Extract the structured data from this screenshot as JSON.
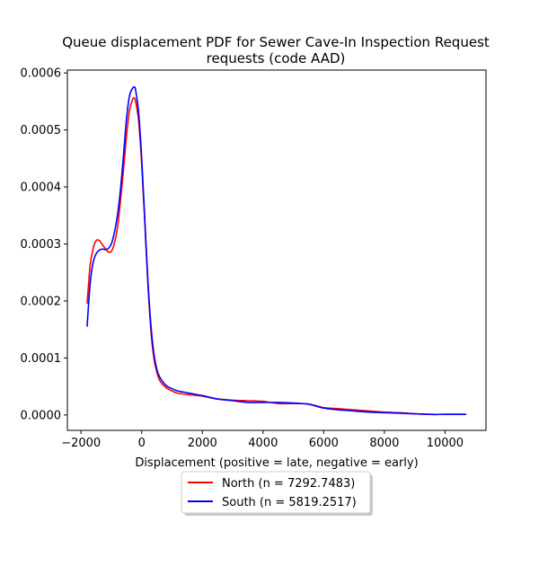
{
  "chart_data": {
    "type": "line",
    "title": "Queue displacement PDF for Sewer Cave-In Inspection Request requests (code AAD)",
    "title_lines": [
      "Queue displacement PDF for Sewer Cave-In Inspection Request",
      "requests (code AAD)"
    ],
    "xlabel": "Displacement (positive = late, negative = early)",
    "ylabel": "",
    "xlim": [
      -2450,
      11350
    ],
    "ylim": [
      -2.7e-05,
      0.000605
    ],
    "x_ticks": [
      -2000,
      0,
      2000,
      4000,
      6000,
      8000,
      10000
    ],
    "x_tick_labels": [
      "−2000",
      "0",
      "2000",
      "4000",
      "6000",
      "8000",
      "10000"
    ],
    "y_ticks": [
      0,
      0.0001,
      0.0002,
      0.0003,
      0.0004,
      0.0005,
      0.0006
    ],
    "y_tick_labels": [
      "0.0000",
      "0.0001",
      "0.0002",
      "0.0003",
      "0.0004",
      "0.0005",
      "0.0006"
    ],
    "grid": false,
    "legend_placement": "below-center",
    "series": [
      {
        "name": "North (n = 7292.7483)",
        "color": "#ff0000",
        "points": [
          [
            -1800,
            0.000195
          ],
          [
            -1700,
            0.000262
          ],
          [
            -1600,
            0.000292
          ],
          [
            -1500,
            0.000306
          ],
          [
            -1400,
            0.000306
          ],
          [
            -1300,
            0.000299
          ],
          [
            -1200,
            0.000292
          ],
          [
            -1100,
            0.000286
          ],
          [
            -1000,
            0.000287
          ],
          [
            -900,
            0.000301
          ],
          [
            -800,
            0.000328
          ],
          [
            -700,
            0.000375
          ],
          [
            -600,
            0.00043
          ],
          [
            -500,
            0.00049
          ],
          [
            -400,
            0.000535
          ],
          [
            -300,
            0.000553
          ],
          [
            -250,
            0.000556
          ],
          [
            -200,
            0.00055
          ],
          [
            -100,
            0.000515
          ],
          [
            0,
            0.00044
          ],
          [
            100,
            0.00034
          ],
          [
            200,
            0.000235
          ],
          [
            300,
            0.00015
          ],
          [
            400,
            0.0001
          ],
          [
            500,
            7.5e-05
          ],
          [
            600,
            6e-05
          ],
          [
            800,
            4.8e-05
          ],
          [
            1000,
            4.2e-05
          ],
          [
            1200,
            3.8e-05
          ],
          [
            1500,
            3.6e-05
          ],
          [
            2000,
            3.3e-05
          ],
          [
            2500,
            2.8e-05
          ],
          [
            3000,
            2.6e-05
          ],
          [
            3500,
            2.5e-05
          ],
          [
            4000,
            2.4e-05
          ],
          [
            4500,
            2e-05
          ],
          [
            5000,
            2e-05
          ],
          [
            5500,
            1.9e-05
          ],
          [
            6000,
            1.3e-05
          ],
          [
            6500,
            1.1e-05
          ],
          [
            7000,
            9e-06
          ],
          [
            7500,
            7e-06
          ],
          [
            8000,
            5e-06
          ],
          [
            8500,
            4e-06
          ],
          [
            9000,
            2e-06
          ],
          [
            9500,
            1e-06
          ],
          [
            10000,
            1e-06
          ],
          [
            10700,
            1e-06
          ]
        ]
      },
      {
        "name": "South (n = 5819.2517)",
        "color": "#0000ff",
        "points": [
          [
            -1800,
            0.000155
          ],
          [
            -1700,
            0.00023
          ],
          [
            -1600,
            0.000268
          ],
          [
            -1500,
            0.000283
          ],
          [
            -1400,
            0.000289
          ],
          [
            -1300,
            0.000291
          ],
          [
            -1200,
            0.00029
          ],
          [
            -1100,
            0.000292
          ],
          [
            -1000,
            0.0003
          ],
          [
            -900,
            0.00032
          ],
          [
            -800,
            0.00035
          ],
          [
            -700,
            0.000395
          ],
          [
            -600,
            0.000455
          ],
          [
            -500,
            0.00052
          ],
          [
            -400,
            0.00056
          ],
          [
            -300,
            0.000573
          ],
          [
            -250,
            0.000575
          ],
          [
            -200,
            0.00057
          ],
          [
            -100,
            0.00053
          ],
          [
            0,
            0.00045
          ],
          [
            100,
            0.000345
          ],
          [
            200,
            0.00024
          ],
          [
            300,
            0.00016
          ],
          [
            400,
            0.000108
          ],
          [
            500,
            8e-05
          ],
          [
            600,
            6.6e-05
          ],
          [
            800,
            5.2e-05
          ],
          [
            1000,
            4.6e-05
          ],
          [
            1200,
            4.2e-05
          ],
          [
            1500,
            3.9e-05
          ],
          [
            2000,
            3.4e-05
          ],
          [
            2500,
            2.8e-05
          ],
          [
            3000,
            2.5e-05
          ],
          [
            3500,
            2.2e-05
          ],
          [
            4000,
            2.2e-05
          ],
          [
            4500,
            2.2e-05
          ],
          [
            5000,
            2.1e-05
          ],
          [
            5500,
            1.9e-05
          ],
          [
            6000,
            1.2e-05
          ],
          [
            6500,
            9e-06
          ],
          [
            7000,
            7e-06
          ],
          [
            7500,
            5e-06
          ],
          [
            8000,
            4e-06
          ],
          [
            8500,
            3e-06
          ],
          [
            9000,
            2e-06
          ],
          [
            9500,
            1e-06
          ],
          [
            10000,
            1e-06
          ],
          [
            10700,
            1e-06
          ]
        ]
      }
    ]
  }
}
